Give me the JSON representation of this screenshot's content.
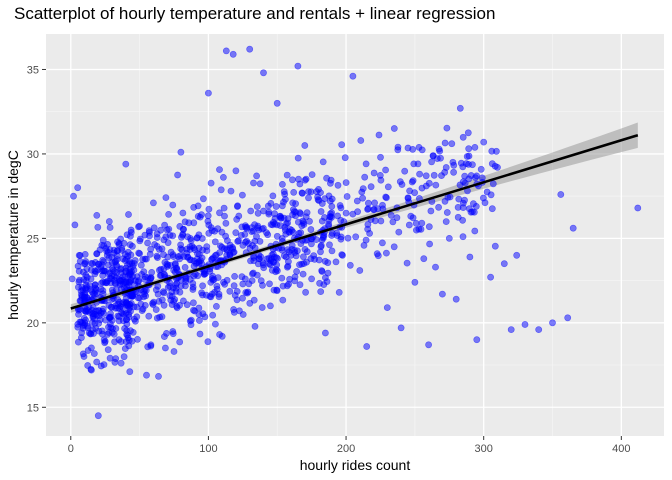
{
  "chart_data": {
    "type": "scatter",
    "title": "Scatterplot of hourly temperature and rentals + linear regression",
    "xlabel": "hourly rides count",
    "ylabel": "hourly temperature in degC",
    "xlim": [
      -18,
      431
    ],
    "ylim": [
      13.3,
      37.1
    ],
    "x_ticks": [
      0,
      100,
      200,
      300,
      400
    ],
    "y_ticks": [
      15,
      20,
      25,
      30,
      35
    ],
    "grid": true,
    "colors": {
      "panel_background": "#ebebeb",
      "grid_major": "#ffffff",
      "points": "#0000ff",
      "regression_line": "#000000",
      "confidence_band": "#999999"
    },
    "point_alpha": 0.5,
    "regression": {
      "intercept": 20.85,
      "slope": 0.0249,
      "x_range": [
        0,
        412
      ],
      "band_halfwidth_at_x_mean": 0.15,
      "band_halfwidth_at_x_max": 0.75,
      "x_mean": 120
    },
    "points_sample": [
      [
        1,
        22.6
      ],
      [
        2,
        27.5
      ],
      [
        3,
        25.8
      ],
      [
        5,
        28.0
      ],
      [
        8,
        21.5
      ],
      [
        12,
        19.8
      ],
      [
        15,
        17.2
      ],
      [
        18,
        20.5
      ],
      [
        20,
        14.5
      ],
      [
        22,
        22.0
      ],
      [
        25,
        18.9
      ],
      [
        28,
        26.0
      ],
      [
        30,
        23.2
      ],
      [
        35,
        19.0
      ],
      [
        40,
        29.4
      ],
      [
        45,
        21.6
      ],
      [
        50,
        24.1
      ],
      [
        55,
        16.9
      ],
      [
        60,
        27.1
      ],
      [
        65,
        22.8
      ],
      [
        70,
        25.5
      ],
      [
        75,
        18.3
      ],
      [
        80,
        30.1
      ],
      [
        85,
        23.9
      ],
      [
        90,
        20.7
      ],
      [
        95,
        26.4
      ],
      [
        100,
        33.6
      ],
      [
        105,
        24.8
      ],
      [
        110,
        19.2
      ],
      [
        113,
        36.1
      ],
      [
        118,
        35.9
      ],
      [
        120,
        29.0
      ],
      [
        125,
        22.3
      ],
      [
        130,
        36.2
      ],
      [
        135,
        28.7
      ],
      [
        140,
        34.8
      ],
      [
        145,
        21.0
      ],
      [
        150,
        33.0
      ],
      [
        155,
        26.2
      ],
      [
        160,
        24.0
      ],
      [
        165,
        35.2
      ],
      [
        170,
        30.5
      ],
      [
        175,
        22.6
      ],
      [
        180,
        27.9
      ],
      [
        185,
        19.4
      ],
      [
        190,
        25.3
      ],
      [
        195,
        21.8
      ],
      [
        200,
        28.3
      ],
      [
        205,
        34.6
      ],
      [
        210,
        23.1
      ],
      [
        215,
        18.6
      ],
      [
        220,
        26.7
      ],
      [
        225,
        29.8
      ],
      [
        230,
        20.9
      ],
      [
        235,
        24.5
      ],
      [
        240,
        19.7
      ],
      [
        245,
        27.4
      ],
      [
        250,
        22.4
      ],
      [
        255,
        25.9
      ],
      [
        260,
        18.7
      ],
      [
        265,
        23.3
      ],
      [
        270,
        21.7
      ],
      [
        275,
        25.0
      ],
      [
        280,
        21.4
      ],
      [
        283,
        32.7
      ],
      [
        285,
        25.1
      ],
      [
        290,
        23.9
      ],
      [
        295,
        19.0
      ],
      [
        300,
        30.7
      ],
      [
        305,
        22.7
      ],
      [
        310,
        29.2
      ],
      [
        315,
        23.5
      ],
      [
        320,
        19.6
      ],
      [
        324,
        24.0
      ],
      [
        330,
        19.9
      ],
      [
        340,
        19.6
      ],
      [
        350,
        20.0
      ],
      [
        356,
        27.6
      ],
      [
        361,
        20.3
      ],
      [
        365,
        25.6
      ],
      [
        412,
        26.8
      ]
    ]
  }
}
